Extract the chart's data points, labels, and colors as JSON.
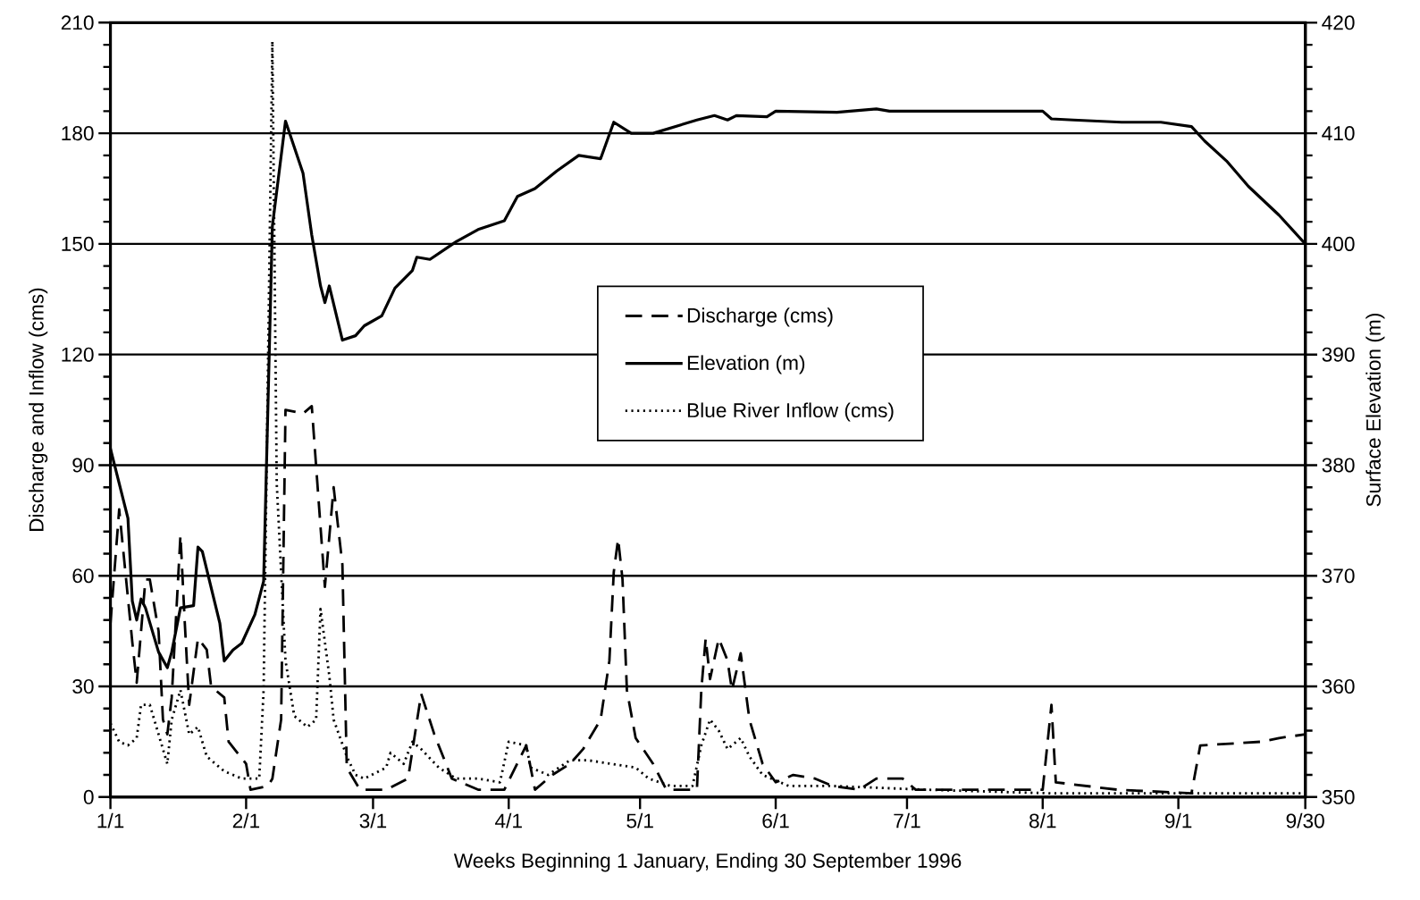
{
  "chart_data": {
    "type": "line",
    "xlabel": "Weeks Beginning 1 January, Ending 30 September 1996",
    "ylabel": "Discharge and Inflow (cms)",
    "y2label": "Surface Elevation (m)",
    "xlim": [
      "1996-01-01",
      "1996-09-30"
    ],
    "xticks": [
      {
        "value": "1996-01-01",
        "label": "1/1"
      },
      {
        "value": "1996-02-01",
        "label": "2/1"
      },
      {
        "value": "1996-03-01",
        "label": "3/1"
      },
      {
        "value": "1996-04-01",
        "label": "4/1"
      },
      {
        "value": "1996-05-01",
        "label": "5/1"
      },
      {
        "value": "1996-06-01",
        "label": "6/1"
      },
      {
        "value": "1996-07-01",
        "label": "7/1"
      },
      {
        "value": "1996-08-01",
        "label": "8/1"
      },
      {
        "value": "1996-09-01",
        "label": "9/1"
      },
      {
        "value": "1996-09-30",
        "label": "9/30"
      }
    ],
    "ylim": [
      0,
      210
    ],
    "yticks": [
      0,
      30,
      60,
      90,
      120,
      150,
      180,
      210
    ],
    "y2lim": [
      350,
      420
    ],
    "y2ticks": [
      350,
      360,
      370,
      380,
      390,
      400,
      410,
      420
    ],
    "grid": "y",
    "legend": "center",
    "series": [
      {
        "name": "Discharge (cms)",
        "color": "#000000",
        "line_style": "dashed",
        "x": [
          "1996-01-01",
          "1996-01-03",
          "1996-01-06",
          "1996-01-07",
          "1996-01-09",
          "1996-01-10",
          "1996-01-12",
          "1996-01-13",
          "1996-01-14",
          "1996-01-15",
          "1996-01-17",
          "1996-01-18",
          "1996-01-19",
          "1996-01-21",
          "1996-01-23",
          "1996-01-24",
          "1996-01-27",
          "1996-01-28",
          "1996-02-01",
          "1996-02-02",
          "1996-02-06",
          "1996-02-07",
          "1996-02-09",
          "1996-02-10",
          "1996-02-14",
          "1996-02-16",
          "1996-02-19",
          "1996-02-21",
          "1996-02-23",
          "1996-02-24",
          "1996-02-27",
          "1996-03-04",
          "1996-03-09",
          "1996-03-12",
          "1996-03-15",
          "1996-03-19",
          "1996-03-25",
          "1996-03-31",
          "1996-04-05",
          "1996-04-07",
          "1996-04-11",
          "1996-04-15",
          "1996-04-18",
          "1996-04-22",
          "1996-04-24",
          "1996-04-25",
          "1996-04-26",
          "1996-04-27",
          "1996-04-28",
          "1996-04-30",
          "1996-05-04",
          "1996-05-07",
          "1996-05-14",
          "1996-05-15",
          "1996-05-16",
          "1996-05-17",
          "1996-05-19",
          "1996-05-21",
          "1996-05-22",
          "1996-05-24",
          "1996-05-26",
          "1996-05-29",
          "1996-06-01",
          "1996-06-05",
          "1996-06-10",
          "1996-06-14",
          "1996-06-20",
          "1996-06-24",
          "1996-06-30",
          "1996-07-03",
          "1996-07-19",
          "1996-08-01",
          "1996-08-03",
          "1996-08-04",
          "1996-08-18",
          "1996-09-04",
          "1996-09-06",
          "1996-09-20",
          "1996-09-24",
          "1996-09-30"
        ],
        "values": [
          47,
          78,
          42,
          31,
          59,
          59,
          45,
          21,
          17,
          27,
          71,
          47,
          25,
          43,
          40,
          30,
          27,
          15,
          9,
          2,
          3,
          5,
          21,
          105,
          104,
          106,
          57,
          84,
          63,
          8,
          2,
          2,
          5,
          28,
          17,
          5,
          2,
          2,
          14,
          2,
          6,
          9,
          13,
          21,
          37,
          61,
          70,
          59,
          29,
          16,
          9,
          2,
          2,
          29,
          43,
          32,
          43,
          37,
          29,
          39,
          21,
          9,
          4,
          6,
          5,
          3,
          2,
          5,
          5,
          2,
          2,
          2,
          25,
          4,
          2,
          1,
          14,
          15,
          16,
          17
        ]
      },
      {
        "name": "Elevation (m)",
        "color": "#000000",
        "line_style": "solid",
        "axis": "y2",
        "x": [
          "1996-01-01",
          "1996-01-05",
          "1996-01-06",
          "1996-01-07",
          "1996-01-08",
          "1996-01-09",
          "1996-01-12",
          "1996-01-14",
          "1996-01-15",
          "1996-01-17",
          "1996-01-20",
          "1996-01-21",
          "1996-01-22",
          "1996-01-26",
          "1996-01-27",
          "1996-01-29",
          "1996-01-31",
          "1996-02-03",
          "1996-02-05",
          "1996-02-07",
          "1996-02-10",
          "1996-02-14",
          "1996-02-16",
          "1996-02-18",
          "1996-02-19",
          "1996-02-20",
          "1996-02-23",
          "1996-02-26",
          "1996-02-28",
          "1996-03-03",
          "1996-03-06",
          "1996-03-10",
          "1996-03-11",
          "1996-03-14",
          "1996-03-20",
          "1996-03-25",
          "1996-03-31",
          "1996-04-03",
          "1996-04-07",
          "1996-04-12",
          "1996-04-17",
          "1996-04-22",
          "1996-04-25",
          "1996-04-29",
          "1996-05-04",
          "1996-05-14",
          "1996-05-18",
          "1996-05-21",
          "1996-05-23",
          "1996-05-30",
          "1996-06-01",
          "1996-06-15",
          "1996-06-24",
          "1996-06-27",
          "1996-08-01",
          "1996-08-03",
          "1996-08-08",
          "1996-08-19",
          "1996-08-28",
          "1996-09-04",
          "1996-09-07",
          "1996-09-12",
          "1996-09-17",
          "1996-09-24",
          "1996-09-30"
        ],
        "values": [
          381.5,
          375.2,
          367.7,
          366.0,
          367.9,
          367.1,
          363.1,
          361.7,
          363.1,
          367.1,
          367.3,
          372.6,
          372.2,
          365.7,
          362.3,
          363.3,
          363.9,
          366.5,
          369.5,
          401.6,
          411.1,
          406.4,
          400.8,
          396.2,
          394.7,
          396.2,
          391.3,
          391.7,
          392.6,
          393.5,
          396.0,
          397.6,
          398.8,
          398.6,
          400.2,
          401.3,
          402.1,
          404.3,
          405.0,
          406.6,
          408.0,
          407.7,
          411.0,
          410.0,
          410.0,
          411.2,
          411.6,
          411.2,
          411.6,
          411.5,
          412.0,
          411.9,
          412.2,
          412.0,
          412.0,
          411.3,
          411.2,
          411.0,
          411.0,
          410.6,
          409.3,
          407.5,
          405.2,
          402.6,
          400.0
        ]
      },
      {
        "name": "Blue River Inflow (cms)",
        "color": "#000000",
        "line_style": "dotted",
        "x": [
          "1996-01-01",
          "1996-01-03",
          "1996-01-05",
          "1996-01-07",
          "1996-01-08",
          "1996-01-10",
          "1996-01-12",
          "1996-01-14",
          "1996-01-15",
          "1996-01-17",
          "1996-01-19",
          "1996-01-21",
          "1996-01-23",
          "1996-01-27",
          "1996-01-31",
          "1996-02-04",
          "1996-02-05",
          "1996-02-07",
          "1996-02-08",
          "1996-02-10",
          "1996-02-12",
          "1996-02-15",
          "1996-02-17",
          "1996-02-18",
          "1996-02-20",
          "1996-02-21",
          "1996-02-24",
          "1996-02-26",
          "1996-02-28",
          "1996-03-04",
          "1996-03-05",
          "1996-03-08",
          "1996-03-10",
          "1996-03-12",
          "1996-03-16",
          "1996-03-20",
          "1996-03-25",
          "1996-03-30",
          "1996-04-01",
          "1996-04-05",
          "1996-04-06",
          "1996-04-10",
          "1996-04-15",
          "1996-04-19",
          "1996-04-30",
          "1996-05-03",
          "1996-05-08",
          "1996-05-13",
          "1996-05-15",
          "1996-05-17",
          "1996-05-19",
          "1996-05-21",
          "1996-05-24",
          "1996-05-26",
          "1996-05-29",
          "1996-06-04",
          "1996-06-14",
          "1996-07-05",
          "1996-08-03",
          "1996-08-28",
          "1996-09-30"
        ],
        "values": [
          20,
          15,
          14,
          16,
          25,
          25,
          17,
          9,
          21,
          29,
          17,
          19,
          11,
          7,
          5,
          5,
          29,
          205,
          85,
          37,
          22,
          19,
          21,
          51,
          33,
          21,
          11,
          6,
          5,
          8,
          12,
          9,
          15,
          13,
          8,
          5,
          5,
          4,
          15,
          14,
          8,
          6,
          10,
          10,
          8,
          5,
          3,
          3,
          14,
          21,
          18,
          13,
          16,
          11,
          6,
          3,
          3,
          2,
          1,
          1,
          1
        ]
      }
    ]
  }
}
